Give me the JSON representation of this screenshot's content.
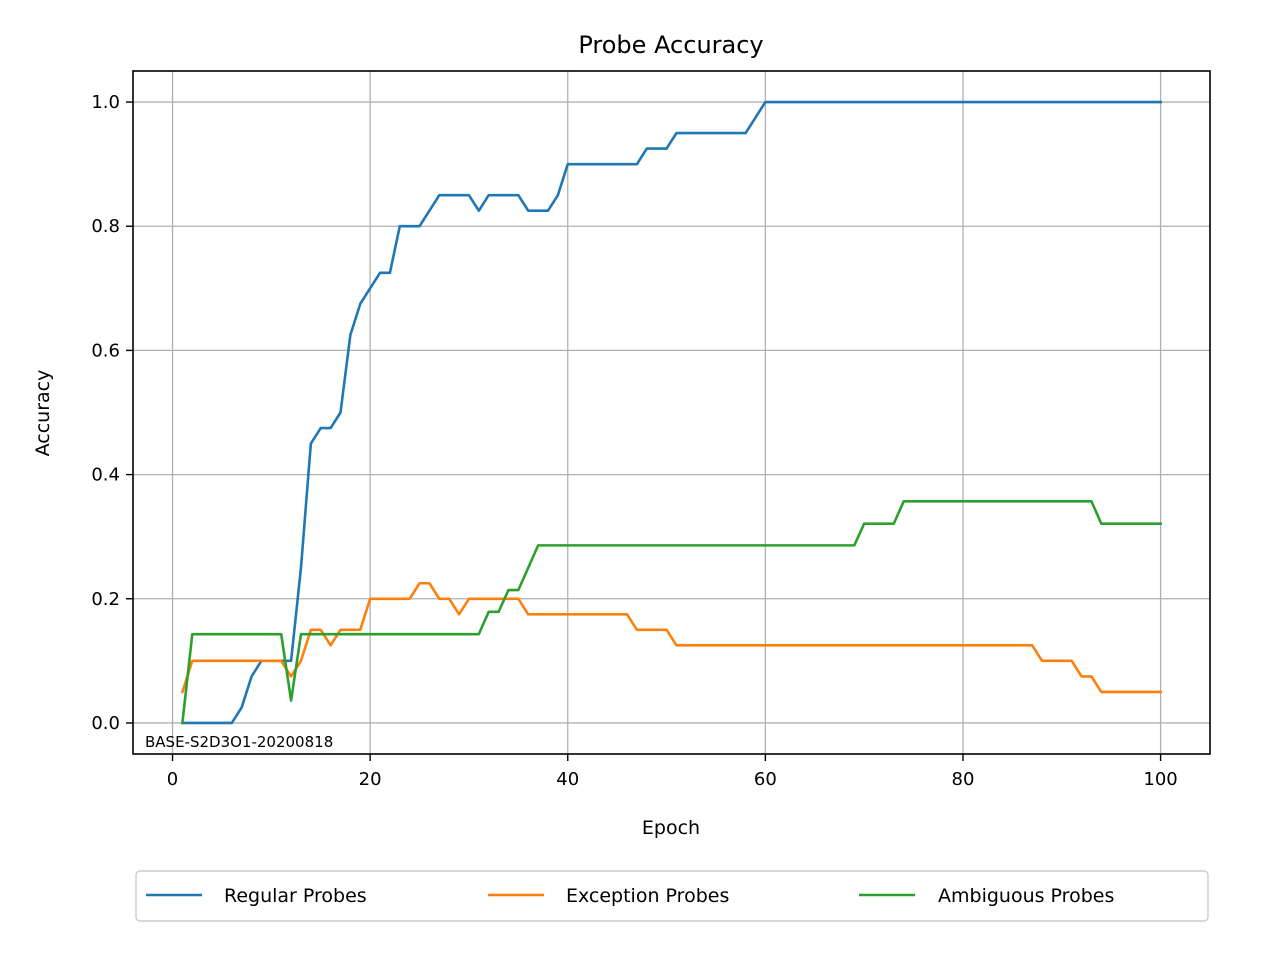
{
  "chart_data": {
    "type": "line",
    "title": "Probe Accuracy",
    "xlabel": "Epoch",
    "ylabel": "Accuracy",
    "xlim": [
      -4,
      105
    ],
    "ylim": [
      -0.05,
      1.05
    ],
    "xticks": [
      0,
      20,
      40,
      60,
      80,
      100
    ],
    "yticks": [
      0.0,
      0.2,
      0.4,
      0.6,
      0.8,
      1.0
    ],
    "xtick_labels": [
      "0",
      "20",
      "40",
      "60",
      "80",
      "100"
    ],
    "ytick_labels": [
      "0.0",
      "0.2",
      "0.4",
      "0.6",
      "0.8",
      "1.0"
    ],
    "grid": true,
    "legend_position": "bottom-center",
    "annotation": "BASE-S2D3O1-20200818",
    "series": [
      {
        "name": "Regular Probes",
        "color": "#1f77b4",
        "points": [
          [
            1,
            0.0
          ],
          [
            2,
            0.0
          ],
          [
            3,
            0.0
          ],
          [
            4,
            0.0
          ],
          [
            5,
            0.0
          ],
          [
            6,
            0.0
          ],
          [
            7,
            0.025
          ],
          [
            8,
            0.075
          ],
          [
            9,
            0.1
          ],
          [
            10,
            0.1
          ],
          [
            11,
            0.1
          ],
          [
            12,
            0.1
          ],
          [
            13,
            0.25
          ],
          [
            14,
            0.45
          ],
          [
            15,
            0.475
          ],
          [
            16,
            0.475
          ],
          [
            17,
            0.5
          ],
          [
            18,
            0.625
          ],
          [
            19,
            0.675
          ],
          [
            20,
            0.7
          ],
          [
            21,
            0.725
          ],
          [
            22,
            0.725
          ],
          [
            23,
            0.8
          ],
          [
            24,
            0.8
          ],
          [
            25,
            0.8
          ],
          [
            26,
            0.825
          ],
          [
            27,
            0.85
          ],
          [
            28,
            0.85
          ],
          [
            29,
            0.85
          ],
          [
            30,
            0.85
          ],
          [
            31,
            0.825
          ],
          [
            32,
            0.85
          ],
          [
            33,
            0.85
          ],
          [
            34,
            0.85
          ],
          [
            35,
            0.85
          ],
          [
            36,
            0.825
          ],
          [
            37,
            0.825
          ],
          [
            38,
            0.825
          ],
          [
            39,
            0.85
          ],
          [
            40,
            0.9
          ],
          [
            41,
            0.9
          ],
          [
            46,
            0.9
          ],
          [
            47,
            0.9
          ],
          [
            48,
            0.925
          ],
          [
            49,
            0.925
          ],
          [
            50,
            0.925
          ],
          [
            51,
            0.95
          ],
          [
            52,
            0.95
          ],
          [
            57,
            0.95
          ],
          [
            58,
            0.95
          ],
          [
            59,
            0.975
          ],
          [
            60,
            1.0
          ],
          [
            100,
            1.0
          ]
        ]
      },
      {
        "name": "Exception Probes",
        "color": "#ff7f0e",
        "points": [
          [
            1,
            0.05
          ],
          [
            2,
            0.1
          ],
          [
            3,
            0.1
          ],
          [
            11,
            0.1
          ],
          [
            12,
            0.075
          ],
          [
            13,
            0.1
          ],
          [
            14,
            0.15
          ],
          [
            15,
            0.15
          ],
          [
            16,
            0.125
          ],
          [
            17,
            0.15
          ],
          [
            18,
            0.15
          ],
          [
            19,
            0.15
          ],
          [
            20,
            0.2
          ],
          [
            21,
            0.2
          ],
          [
            24,
            0.2
          ],
          [
            25,
            0.225
          ],
          [
            26,
            0.225
          ],
          [
            27,
            0.2
          ],
          [
            28,
            0.2
          ],
          [
            29,
            0.175
          ],
          [
            30,
            0.2
          ],
          [
            31,
            0.2
          ],
          [
            35,
            0.2
          ],
          [
            36,
            0.175
          ],
          [
            37,
            0.175
          ],
          [
            46,
            0.175
          ],
          [
            47,
            0.15
          ],
          [
            48,
            0.15
          ],
          [
            50,
            0.15
          ],
          [
            51,
            0.125
          ],
          [
            52,
            0.125
          ],
          [
            87,
            0.125
          ],
          [
            88,
            0.1
          ],
          [
            89,
            0.1
          ],
          [
            91,
            0.1
          ],
          [
            92,
            0.075
          ],
          [
            93,
            0.075
          ],
          [
            94,
            0.05
          ],
          [
            95,
            0.05
          ],
          [
            100,
            0.05
          ]
        ]
      },
      {
        "name": "Ambiguous Probes",
        "color": "#2ca02c",
        "points": [
          [
            1,
            0.0
          ],
          [
            2,
            0.143
          ],
          [
            3,
            0.143
          ],
          [
            11,
            0.143
          ],
          [
            12,
            0.036
          ],
          [
            13,
            0.143
          ],
          [
            14,
            0.143
          ],
          [
            31,
            0.143
          ],
          [
            32,
            0.179
          ],
          [
            33,
            0.179
          ],
          [
            34,
            0.214
          ],
          [
            35,
            0.214
          ],
          [
            36,
            0.25
          ],
          [
            37,
            0.286
          ],
          [
            38,
            0.286
          ],
          [
            69,
            0.286
          ],
          [
            70,
            0.321
          ],
          [
            71,
            0.321
          ],
          [
            73,
            0.321
          ],
          [
            74,
            0.357
          ],
          [
            75,
            0.357
          ],
          [
            93,
            0.357
          ],
          [
            94,
            0.321
          ],
          [
            95,
            0.321
          ],
          [
            100,
            0.321
          ]
        ]
      }
    ]
  }
}
